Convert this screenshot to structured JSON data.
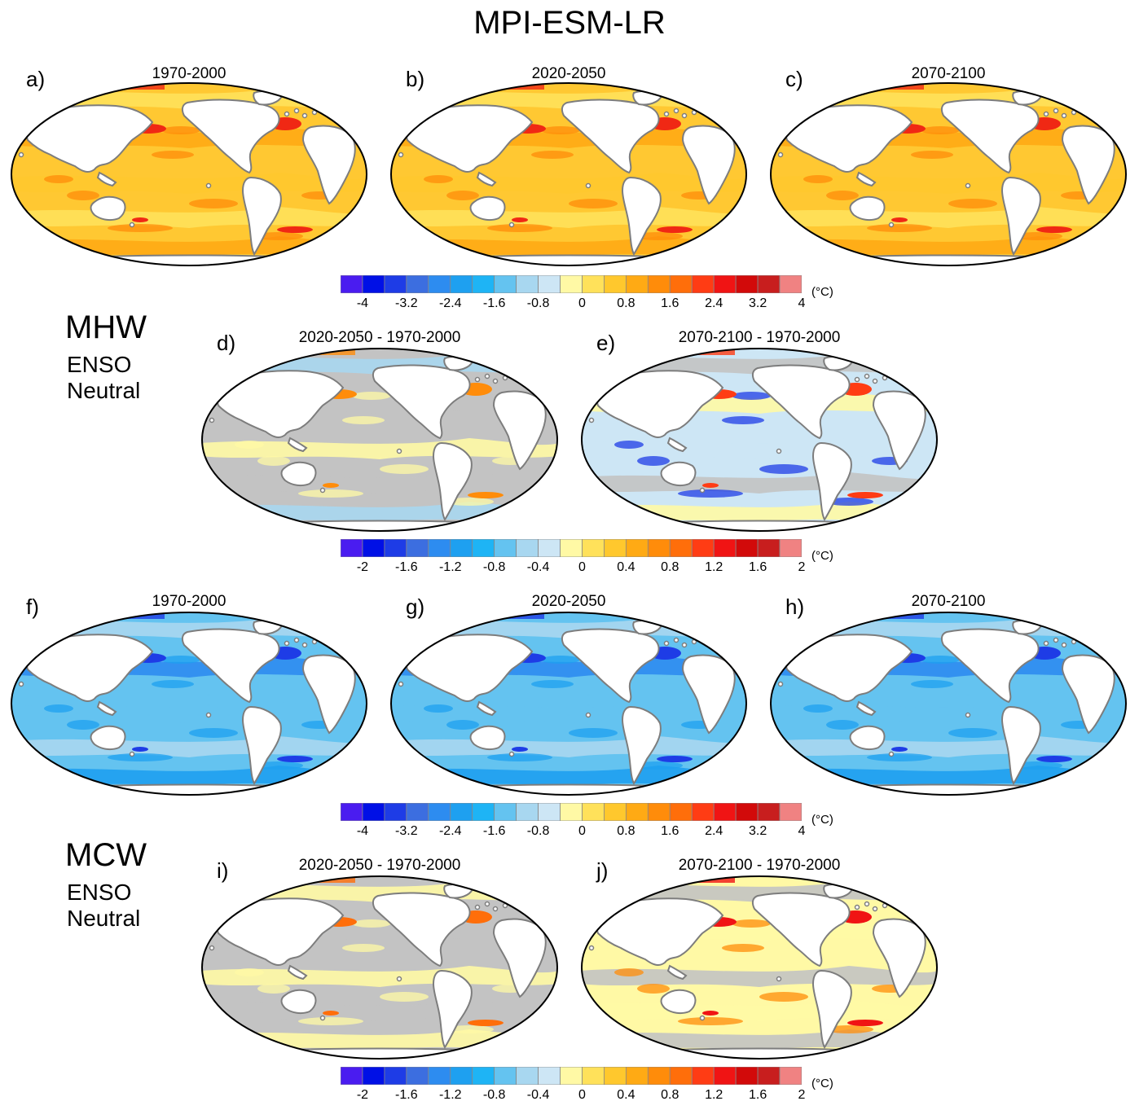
{
  "figure": {
    "title": "MPI-ESM-LR",
    "sections": [
      {
        "name": "MHW",
        "sub1": "ENSO",
        "sub2": "Neutral"
      },
      {
        "name": "MCW",
        "sub1": "ENSO",
        "sub2": "Neutral"
      }
    ]
  },
  "panels": [
    {
      "letter": "a)",
      "title": "1970-2000",
      "field": "mhw-abs"
    },
    {
      "letter": "b)",
      "title": "2020-2050",
      "field": "mhw-abs"
    },
    {
      "letter": "c)",
      "title": "2070-2100",
      "field": "mhw-abs"
    },
    {
      "letter": "d)",
      "title": "2020-2050 - 1970-2000",
      "field": "mhw-diff-near"
    },
    {
      "letter": "e)",
      "title": "2070-2100 - 1970-2000",
      "field": "mhw-diff-far"
    },
    {
      "letter": "f)",
      "title": "1970-2000",
      "field": "mcw-abs"
    },
    {
      "letter": "g)",
      "title": "2020-2050",
      "field": "mcw-abs"
    },
    {
      "letter": "h)",
      "title": "2070-2100",
      "field": "mcw-abs"
    },
    {
      "letter": "i)",
      "title": "2020-2050 - 1970-2000",
      "field": "mcw-diff-near"
    },
    {
      "letter": "j)",
      "title": "2070-2100 - 1970-2000",
      "field": "mcw-diff-far"
    }
  ],
  "colorbars": {
    "unit": "(°C)",
    "colors": [
      "#4a1cf0",
      "#0010e6",
      "#1e3ce6",
      "#3c6ee0",
      "#2d8cf0",
      "#1ea0f0",
      "#1eb4f5",
      "#64c3f0",
      "#a8d7f0",
      "#cde6f5",
      "#fff9a5",
      "#ffe15a",
      "#ffc82d",
      "#ffaa14",
      "#ff8c0a",
      "#ff6e0a",
      "#ff3c14",
      "#f01414",
      "#d20a0a",
      "#c81e1e",
      "#f08282"
    ],
    "abs": {
      "labels": [
        "-4",
        "-3.2",
        "-2.4",
        "-1.6",
        "-0.8",
        "0",
        "0.8",
        "1.6",
        "2.4",
        "3.2",
        "4"
      ]
    },
    "diff": {
      "labels": [
        "-2",
        "-1.6",
        "-1.2",
        "-0.8",
        "-0.4",
        "0",
        "0.4",
        "0.8",
        "1.2",
        "1.6",
        "2"
      ]
    }
  }
}
